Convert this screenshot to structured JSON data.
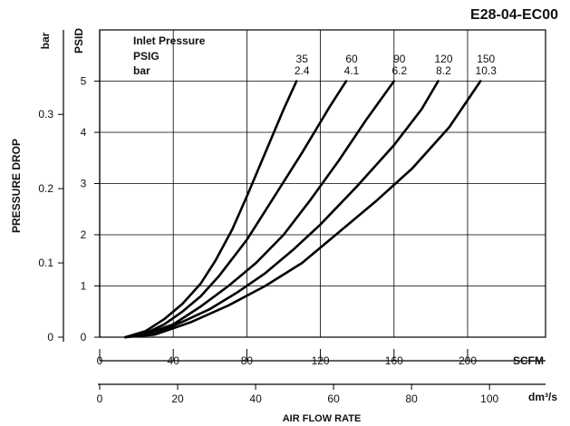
{
  "chart_data": {
    "type": "line",
    "title": "E28-04-EC00",
    "ylabel": "PRESSURE DROP",
    "xlabel": "AIR FLOW RATE",
    "y_unit_primary": "PSID",
    "y_unit_secondary": "bar",
    "x_unit_primary": "SCFM",
    "x_unit_secondary": "dm³/s",
    "ylim": [
      0,
      5
    ],
    "xlim": [
      0,
      210
    ],
    "y_ticks_psid": [
      "0",
      "1",
      "2",
      "3",
      "4",
      "5"
    ],
    "y_ticks_bar": [
      "0",
      "0.1",
      "0.2",
      "0.3"
    ],
    "x_ticks_scfm": [
      "0",
      "40",
      "80",
      "120",
      "160",
      "200"
    ],
    "x_ticks_dm3s": [
      "0",
      "20",
      "40",
      "60",
      "80",
      "100"
    ],
    "grid": true,
    "legend": {
      "header": "Inlet Pressure",
      "row1": "PSIG",
      "row2": "bar"
    },
    "series": [
      {
        "psig": "35",
        "bar": "2.4",
        "points": [
          [
            14,
            0
          ],
          [
            25,
            0.12
          ],
          [
            35,
            0.35
          ],
          [
            45,
            0.65
          ],
          [
            55,
            1.05
          ],
          [
            63,
            1.5
          ],
          [
            72,
            2.1
          ],
          [
            80,
            2.75
          ],
          [
            90,
            3.6
          ],
          [
            100,
            4.45
          ],
          [
            107,
            5.0
          ]
        ]
      },
      {
        "psig": "60",
        "bar": "4.1",
        "points": [
          [
            14,
            0
          ],
          [
            25,
            0.08
          ],
          [
            35,
            0.25
          ],
          [
            45,
            0.5
          ],
          [
            55,
            0.8
          ],
          [
            65,
            1.2
          ],
          [
            80,
            1.9
          ],
          [
            95,
            2.75
          ],
          [
            110,
            3.6
          ],
          [
            125,
            4.5
          ],
          [
            134,
            5.0
          ]
        ]
      },
      {
        "psig": "90",
        "bar": "6.2",
        "points": [
          [
            14,
            0
          ],
          [
            25,
            0.06
          ],
          [
            40,
            0.25
          ],
          [
            55,
            0.6
          ],
          [
            70,
            1.0
          ],
          [
            85,
            1.45
          ],
          [
            100,
            2.0
          ],
          [
            115,
            2.7
          ],
          [
            130,
            3.45
          ],
          [
            145,
            4.25
          ],
          [
            160,
            5.0
          ]
        ]
      },
      {
        "psig": "120",
        "bar": "8.2",
        "points": [
          [
            14,
            0
          ],
          [
            30,
            0.07
          ],
          [
            45,
            0.3
          ],
          [
            60,
            0.55
          ],
          [
            75,
            0.88
          ],
          [
            90,
            1.25
          ],
          [
            105,
            1.7
          ],
          [
            120,
            2.2
          ],
          [
            140,
            2.95
          ],
          [
            160,
            3.75
          ],
          [
            175,
            4.45
          ],
          [
            184,
            5.0
          ]
        ]
      },
      {
        "psig": "150",
        "bar": "10.3",
        "points": [
          [
            14,
            0
          ],
          [
            30,
            0.05
          ],
          [
            50,
            0.3
          ],
          [
            70,
            0.62
          ],
          [
            90,
            1.0
          ],
          [
            110,
            1.45
          ],
          [
            130,
            2.05
          ],
          [
            150,
            2.65
          ],
          [
            170,
            3.3
          ],
          [
            190,
            4.1
          ],
          [
            207,
            5.0
          ]
        ]
      }
    ]
  }
}
